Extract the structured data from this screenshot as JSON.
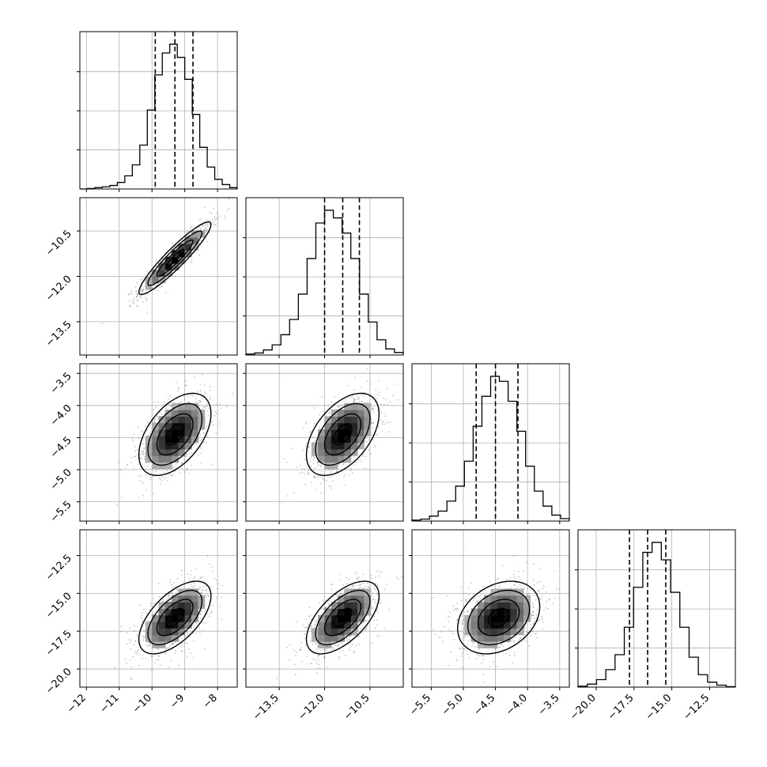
{
  "chart_data": {
    "type": "corner",
    "title": "",
    "grid": true,
    "colors": {
      "line": "#000000",
      "grid": "#b0b0b0",
      "background": "#ffffff"
    },
    "parameters": [
      {
        "range": [
          -12.2,
          -7.4
        ],
        "ticks": [
          -12,
          -11,
          -10,
          -9,
          -8
        ],
        "tick_labels": [
          "−12",
          "−11",
          "−10",
          "−9",
          "−8"
        ],
        "hist_counts": [
          0,
          1,
          3,
          5,
          8,
          15,
          30,
          55,
          100,
          180,
          260,
          310,
          330,
          300,
          250,
          170,
          95,
          50,
          22,
          10,
          3
        ],
        "quantiles": [
          -9.9,
          -9.3,
          -8.75
        ]
      },
      {
        "range": [
          -14.6,
          -9.4
        ],
        "ticks": [
          -13.5,
          -12.0,
          -10.5
        ],
        "tick_labels": [
          "−13.5",
          "−12.0",
          "−10.5"
        ],
        "hist_counts": [
          2,
          4,
          10,
          20,
          40,
          70,
          120,
          190,
          260,
          285,
          270,
          240,
          190,
          120,
          65,
          30,
          12,
          5
        ],
        "quantiles": [
          -12.0,
          -11.4,
          -10.85
        ]
      },
      {
        "range": [
          -5.8,
          -3.35
        ],
        "ticks": [
          -5.5,
          -5.0,
          -4.5,
          -4.0,
          -3.5
        ],
        "tick_labels": [
          "−5.5",
          "−5.0",
          "−4.5",
          "−4.0",
          "−3.5"
        ],
        "hist_counts": [
          2,
          4,
          10,
          20,
          40,
          70,
          120,
          190,
          250,
          290,
          280,
          240,
          180,
          110,
          60,
          30,
          12,
          5
        ],
        "quantiles": [
          -4.8,
          -4.5,
          -4.15
        ]
      },
      {
        "range": [
          -21.2,
          -10.8
        ],
        "ticks": [
          -20.0,
          -17.5,
          -15.0,
          -12.5
        ],
        "tick_labels": [
          "−20.0",
          "−17.5",
          "−15.0",
          "−12.5"
        ],
        "hist_counts": [
          2,
          6,
          15,
          35,
          65,
          120,
          200,
          270,
          290,
          255,
          190,
          120,
          60,
          25,
          10,
          4,
          1
        ],
        "quantiles": [
          -17.8,
          -16.6,
          -15.4
        ]
      }
    ],
    "pairs": [
      {
        "row": 1,
        "col": 0,
        "mean": [
          -9.3,
          -11.4
        ],
        "sd": [
          0.55,
          0.6
        ],
        "corr": 0.93
      },
      {
        "row": 2,
        "col": 0,
        "mean": [
          -9.3,
          -4.45
        ],
        "sd": [
          0.55,
          0.32
        ],
        "corr": 0.5
      },
      {
        "row": 2,
        "col": 1,
        "mean": [
          -11.4,
          -4.45
        ],
        "sd": [
          0.6,
          0.32
        ],
        "corr": 0.5
      },
      {
        "row": 3,
        "col": 0,
        "mean": [
          -9.3,
          -16.6
        ],
        "sd": [
          0.55,
          1.2
        ],
        "corr": 0.6
      },
      {
        "row": 3,
        "col": 1,
        "mean": [
          -11.4,
          -16.6
        ],
        "sd": [
          0.6,
          1.2
        ],
        "corr": 0.6
      },
      {
        "row": 3,
        "col": 2,
        "mean": [
          -4.45,
          -16.6
        ],
        "sd": [
          0.32,
          1.2
        ],
        "corr": 0.3
      }
    ]
  }
}
